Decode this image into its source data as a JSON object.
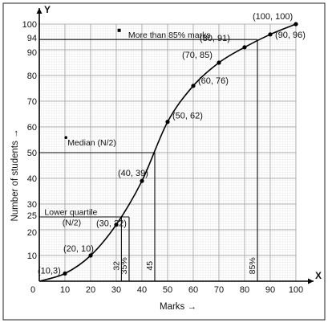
{
  "chart_data": {
    "type": "line",
    "xlim": [
      0,
      100
    ],
    "ylim": [
      0,
      100
    ],
    "grid": true,
    "x_axis_letter": "X",
    "y_axis_letter": "Y",
    "xlabel": "Marks →",
    "ylabel": "Number of students →",
    "x_ticks": [
      0,
      10,
      20,
      30,
      40,
      50,
      60,
      70,
      80,
      90,
      100
    ],
    "y_ticks": [
      10,
      20,
      25,
      30,
      40,
      50,
      60,
      70,
      80,
      90,
      94,
      100
    ],
    "series": [
      {
        "x": [
          0,
          10,
          20,
          30,
          40,
          50,
          60,
          70,
          80,
          90,
          100
        ],
        "y": [
          0,
          3,
          10,
          22,
          39,
          62,
          76,
          85,
          91,
          96,
          100
        ]
      }
    ],
    "point_labels": [
      {
        "x": 10,
        "y": 3,
        "text": "(10,3)"
      },
      {
        "x": 20,
        "y": 10,
        "text": "(20, 10)"
      },
      {
        "x": 30,
        "y": 22,
        "text": "(30, 22)"
      },
      {
        "x": 40,
        "y": 39,
        "text": "(40, 39)"
      },
      {
        "x": 50,
        "y": 62,
        "text": "(50, 62)"
      },
      {
        "x": 60,
        "y": 76,
        "text": "(60, 76)"
      },
      {
        "x": 70,
        "y": 85,
        "text": "(70, 85)"
      },
      {
        "x": 80,
        "y": 91,
        "text": "(80, 91)"
      },
      {
        "x": 90,
        "y": 96,
        "text": "(90, 96)"
      },
      {
        "x": 100,
        "y": 100,
        "text": "(100, 100)"
      }
    ],
    "reference_lines": [
      {
        "orientation": "horizontal",
        "y": 94,
        "x_end": 85
      },
      {
        "orientation": "horizontal",
        "y": 50,
        "x_end": 45
      },
      {
        "orientation": "horizontal",
        "y": 25,
        "x_end": 32
      },
      {
        "orientation": "horizontal",
        "y": 25,
        "x_end": 35
      },
      {
        "orientation": "vertical",
        "x": 85,
        "y_end": 94
      },
      {
        "orientation": "vertical",
        "x": 45,
        "y_end": 50
      },
      {
        "orientation": "vertical",
        "x": 32,
        "y_end": 25
      },
      {
        "orientation": "vertical",
        "x": 35,
        "y_end": 25
      }
    ],
    "annotations": [
      {
        "text": "More than 85% marks",
        "x": 68,
        "y": 96
      },
      {
        "text": "Median (N/2)",
        "x": 11,
        "y": 54
      },
      {
        "text": "Lower quartile",
        "x": 2,
        "y": 27
      },
      {
        "text": "(N/2)",
        "x": 9,
        "y": 22
      }
    ],
    "vertical_labels": [
      {
        "text": "32",
        "x": 32
      },
      {
        "text": "35%",
        "x": 35
      },
      {
        "text": "45",
        "x": 45
      },
      {
        "text": "85%",
        "x": 85
      }
    ]
  }
}
